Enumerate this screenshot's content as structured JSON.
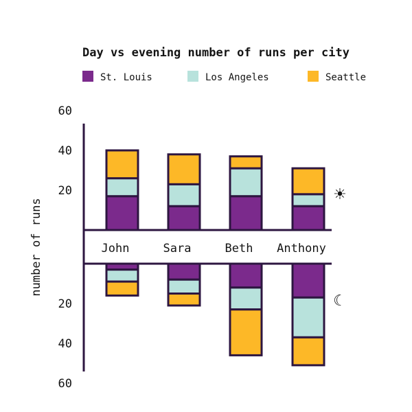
{
  "chart_data": {
    "type": "bar",
    "title": "Day vs evening number of runs per city",
    "ylabel": "number of runs",
    "categories": [
      "John",
      "Sara",
      "Beth",
      "Anthony"
    ],
    "yticks": [
      "20",
      "40",
      "60"
    ],
    "ylim": [
      0,
      60
    ],
    "legend_position": "top",
    "panels": [
      {
        "name": "day",
        "icon": "sun-icon",
        "icon_glyph": "☀",
        "series": [
          {
            "name": "St. Louis",
            "color": "#7b2a8c",
            "values": [
              17,
              12,
              17,
              12
            ]
          },
          {
            "name": "Los Angeles",
            "color": "#b8e2dc",
            "values": [
              9,
              11,
              14,
              6
            ]
          },
          {
            "name": "Seattle",
            "color": "#fdb827",
            "values": [
              14,
              15,
              6,
              13
            ]
          }
        ]
      },
      {
        "name": "evening",
        "icon": "moon-icon",
        "icon_glyph": "☾",
        "series": [
          {
            "name": "St. Louis",
            "color": "#7b2a8c",
            "values": [
              3,
              8,
              12,
              17
            ]
          },
          {
            "name": "Los Angeles",
            "color": "#b8e2dc",
            "values": [
              6,
              7,
              11,
              20
            ]
          },
          {
            "name": "Seattle",
            "color": "#fdb827",
            "values": [
              7,
              6,
              23,
              14
            ]
          }
        ]
      }
    ]
  }
}
